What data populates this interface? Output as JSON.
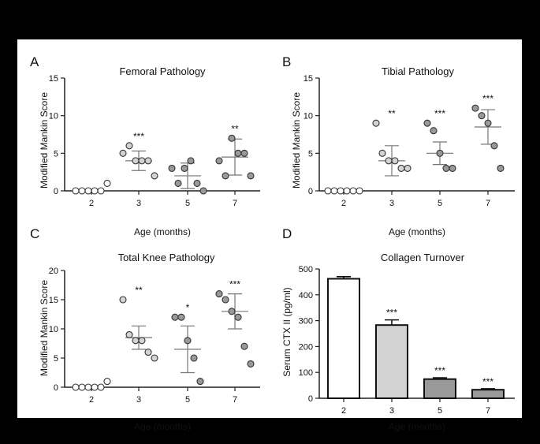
{
  "chart_data": [
    {
      "id": "A",
      "type": "scatter",
      "panel_label": "A",
      "title": "Femoral Pathology",
      "xlabel": "Age (months)",
      "ylabel": "Modified  Mankin Score",
      "ylim": [
        0,
        15
      ],
      "yticks": [
        "0",
        "5",
        "10",
        "15"
      ],
      "categories": [
        "2",
        "3",
        "5",
        "7"
      ],
      "fills": [
        "#ffffff",
        "#d3d3d3",
        "#999999",
        "#999999"
      ],
      "points": [
        [
          0,
          0,
          0,
          0,
          0,
          1
        ],
        [
          5,
          6,
          4,
          4,
          4,
          2
        ],
        [
          3,
          1,
          3,
          4,
          1,
          0
        ],
        [
          4,
          2,
          7,
          5,
          5,
          2
        ]
      ],
      "mean": [
        0,
        4,
        2,
        4.5
      ],
      "sd": [
        0,
        1.3,
        1.7,
        2.4
      ],
      "significance": [
        "",
        "***",
        "",
        "**"
      ]
    },
    {
      "id": "B",
      "type": "scatter",
      "panel_label": "B",
      "title": "Tibial Pathology",
      "xlabel": "Age (months)",
      "ylabel": "Modified  Mankin Score",
      "ylim": [
        0,
        15
      ],
      "yticks": [
        "0",
        "5",
        "10",
        "15"
      ],
      "categories": [
        "2",
        "3",
        "5",
        "7"
      ],
      "fills": [
        "#ffffff",
        "#d3d3d3",
        "#999999",
        "#999999"
      ],
      "points": [
        [
          0,
          0,
          0,
          0,
          0,
          0
        ],
        [
          9,
          5,
          4,
          4,
          3,
          3
        ],
        [
          9,
          8,
          5,
          3,
          3
        ],
        [
          11,
          10,
          9,
          6,
          3
        ]
      ],
      "mean": [
        0,
        4,
        5,
        8.5
      ],
      "sd": [
        0,
        2,
        1.5,
        2.3
      ],
      "significance": [
        "",
        "**",
        "***",
        "***"
      ]
    },
    {
      "id": "C",
      "type": "scatter",
      "panel_label": "C",
      "title": "Total Knee Pathology",
      "xlabel": "Age (months)",
      "ylabel": "Modified  Mankin Score",
      "ylim": [
        0,
        20
      ],
      "yticks": [
        "0",
        "5",
        "10",
        "15",
        "20"
      ],
      "categories": [
        "2",
        "3",
        "5",
        "7"
      ],
      "fills": [
        "#ffffff",
        "#d3d3d3",
        "#999999",
        "#999999"
      ],
      "points": [
        [
          0,
          0,
          0,
          0,
          0,
          1
        ],
        [
          15,
          9,
          8,
          8,
          6,
          5
        ],
        [
          12,
          12,
          8,
          5,
          1
        ],
        [
          16,
          15,
          13,
          12,
          7,
          4
        ]
      ],
      "mean": [
        0,
        8.5,
        6.5,
        13
      ],
      "sd": [
        0,
        2,
        4,
        3
      ],
      "significance": [
        "",
        "**",
        "*",
        "***"
      ]
    },
    {
      "id": "D",
      "type": "bar",
      "panel_label": "D",
      "title": "Collagen Turnover",
      "xlabel": "Age (months)",
      "ylabel": "Serum CTX II (pg/ml)",
      "ylim": [
        0,
        500
      ],
      "yticks": [
        "0",
        "100",
        "200",
        "300",
        "400",
        "500"
      ],
      "categories": [
        "2",
        "3",
        "5",
        "7"
      ],
      "values": [
        462,
        283,
        74,
        33
      ],
      "errors": [
        8,
        20,
        5,
        4
      ],
      "fills": [
        "#ffffff",
        "#d3d3d3",
        "#999999",
        "#999999"
      ],
      "significance": [
        "",
        "***",
        "***",
        "***"
      ]
    }
  ]
}
